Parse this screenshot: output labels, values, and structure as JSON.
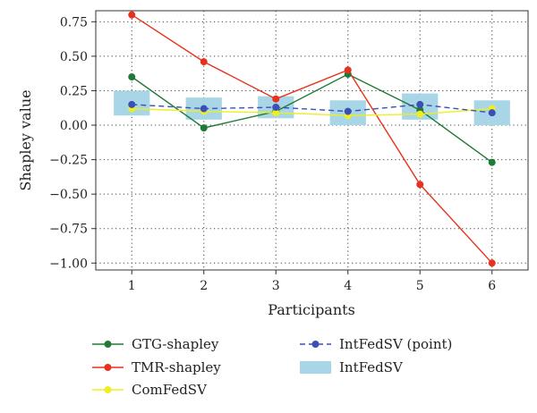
{
  "chart_data": {
    "type": "line",
    "xlabel": "Participants",
    "ylabel": "Shapley value",
    "x": [
      1,
      2,
      3,
      4,
      5,
      6
    ],
    "xlim": [
      0.5,
      6.5
    ],
    "ylim": [
      -1.05,
      0.83
    ],
    "yticks": [
      0.75,
      0.5,
      0.25,
      0.0,
      -0.25,
      -0.5,
      -0.75,
      -1.0
    ],
    "ytick_labels": [
      "0.75",
      "0.50",
      "0.25",
      "0.00",
      "−0.25",
      "−0.50",
      "−0.75",
      "−1.00"
    ],
    "xtick_labels": [
      "1",
      "2",
      "3",
      "4",
      "5",
      "6"
    ],
    "grid": "dotted",
    "legend_placement": "below",
    "series": [
      {
        "name": "GTG-shapley",
        "color": "#1e7b35",
        "marker": "circle",
        "style": "solid",
        "values": [
          0.35,
          -0.02,
          0.1,
          0.37,
          0.11,
          -0.27
        ]
      },
      {
        "name": "TMR-shapley",
        "color": "#e8321f",
        "marker": "circle",
        "style": "solid",
        "values": [
          0.8,
          0.46,
          0.19,
          0.4,
          -0.43,
          -1.0
        ]
      },
      {
        "name": "ComFedSV",
        "color": "#eeee22",
        "marker": "circle",
        "style": "solid",
        "values": [
          0.12,
          0.1,
          0.09,
          0.07,
          0.08,
          0.12
        ]
      },
      {
        "name": "IntFedSV (point)",
        "color": "#3b4fb5",
        "marker": "circle",
        "style": "dashed",
        "values": [
          0.15,
          0.12,
          0.13,
          0.1,
          0.15,
          0.09
        ]
      }
    ],
    "intervals": {
      "name": "IntFedSV",
      "color": "#a8d6e6",
      "low": [
        0.07,
        0.04,
        0.05,
        0.0,
        0.04,
        0.0
      ],
      "high": [
        0.25,
        0.2,
        0.21,
        0.18,
        0.23,
        0.18
      ]
    }
  }
}
